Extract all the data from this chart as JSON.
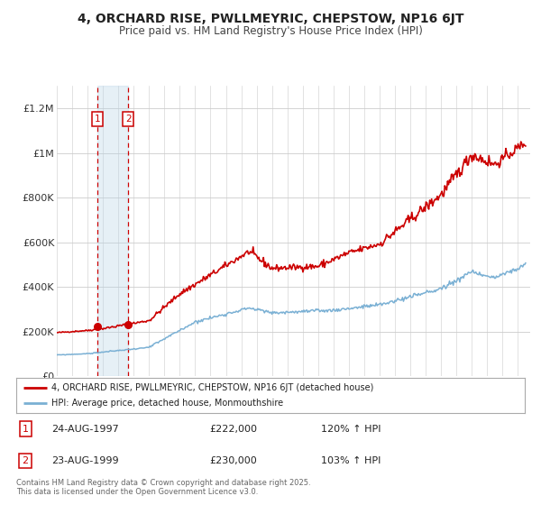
{
  "title": "4, ORCHARD RISE, PWLLMEYRIC, CHEPSTOW, NP16 6JT",
  "subtitle": "Price paid vs. HM Land Registry's House Price Index (HPI)",
  "ylim": [
    0,
    1300000
  ],
  "yticks": [
    0,
    200000,
    400000,
    600000,
    800000,
    1000000,
    1200000
  ],
  "ytick_labels": [
    "£0",
    "£200K",
    "£400K",
    "£600K",
    "£800K",
    "£1M",
    "£1.2M"
  ],
  "bg_color": "#f5f5f5",
  "plot_bg": "#ffffff",
  "grid_color": "#cccccc",
  "red_color": "#cc0000",
  "blue_color": "#7ab0d4",
  "purchase1_year": 1997.64,
  "purchase1_price": 222000,
  "purchase1_date": "24-AUG-1997",
  "purchase1_hpi": "120% ↑ HPI",
  "purchase2_year": 1999.64,
  "purchase2_price": 230000,
  "purchase2_date": "23-AUG-1999",
  "purchase2_hpi": "103% ↑ HPI",
  "legend_line1": "4, ORCHARD RISE, PWLLMEYRIC, CHEPSTOW, NP16 6JT (detached house)",
  "legend_line2": "HPI: Average price, detached house, Monmouthshire",
  "footer": "Contains HM Land Registry data © Crown copyright and database right 2025.\nThis data is licensed under the Open Government Licence v3.0."
}
